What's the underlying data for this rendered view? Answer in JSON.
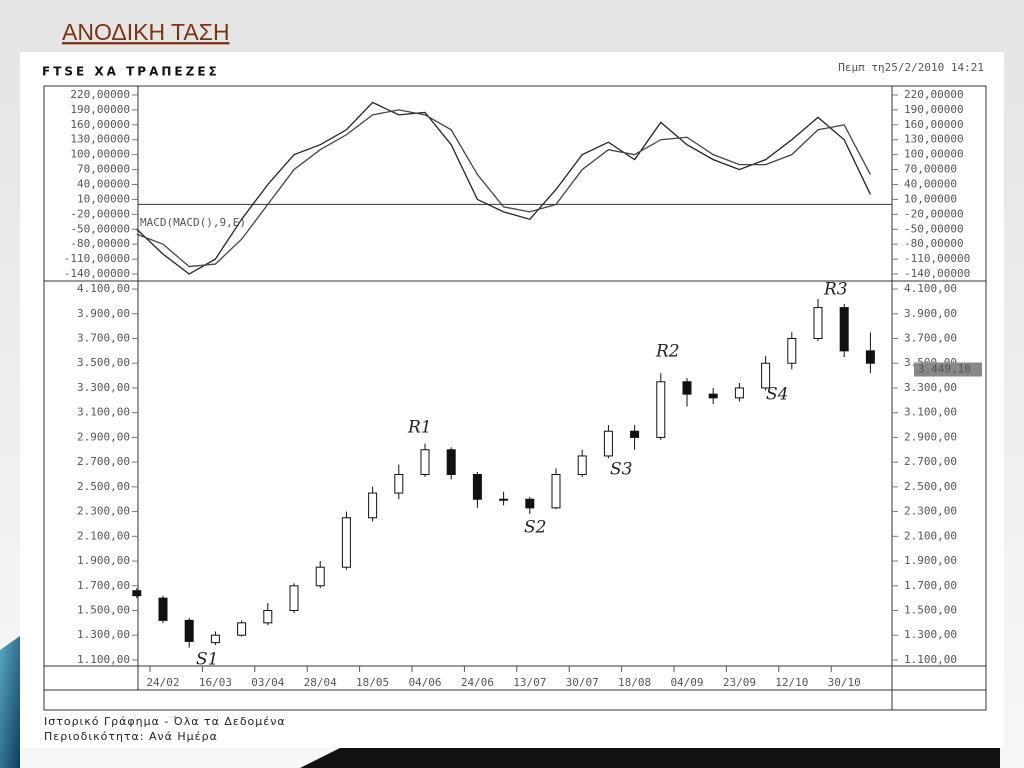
{
  "title": "ΑΝΟΔΙΚΗ ΤΑΣΗ",
  "header": {
    "name": "FTSE ΧΑ ΤΡΑΠΕΖΕΣ",
    "timestamp": "Πεμπ τη25/2/2010  14:21"
  },
  "footer": [
    "Ιστορικό Γράφημα - Όλα τα Δεδομένα",
    "Περιοδικότητα: Ανά Ημέρα"
  ],
  "chart_data": [
    {
      "type": "line",
      "title": "MACD(MACD(),9,E)",
      "categories": [
        null,
        "24/02",
        null,
        "16/03",
        null,
        "03/04",
        null,
        "28/04",
        null,
        "18/05",
        null,
        "04/06",
        null,
        "24/06",
        null,
        "13/07",
        null,
        "30/07",
        null,
        "18/08",
        null,
        "04/09",
        null,
        "23/09",
        null,
        "12/10",
        null,
        "30/10",
        null
      ],
      "series": [
        {
          "name": "MACD",
          "color": "#222",
          "values": [
            -50,
            -100,
            -140,
            -110,
            -30,
            40,
            100,
            120,
            150,
            205,
            180,
            185,
            120,
            10,
            -15,
            -30,
            30,
            100,
            125,
            90,
            165,
            120,
            90,
            70,
            90,
            130,
            175,
            130,
            20
          ]
        },
        {
          "name": "Signal",
          "color": "#444",
          "values": [
            -60,
            -80,
            -125,
            -120,
            -70,
            0,
            70,
            110,
            140,
            180,
            190,
            180,
            150,
            60,
            -5,
            -15,
            0,
            70,
            110,
            100,
            130,
            135,
            100,
            80,
            80,
            100,
            150,
            160,
            60
          ]
        }
      ],
      "ylim": [
        -152,
        234
      ],
      "yticks": [
        {
          "value": 220,
          "label": "220,00000"
        },
        {
          "value": 190,
          "label": "190,00000"
        },
        {
          "value": 160,
          "label": "160,00000"
        },
        {
          "value": 130,
          "label": "130,00000"
        },
        {
          "value": 100,
          "label": "100,00000"
        },
        {
          "value": 70,
          "label": "70,00000"
        },
        {
          "value": 40,
          "label": "40,00000"
        },
        {
          "value": 10,
          "label": "10,00000"
        },
        {
          "value": -20,
          "label": "-20,00000"
        },
        {
          "value": -50,
          "label": "-50,00000"
        },
        {
          "value": -80,
          "label": "-80,00000"
        },
        {
          "value": -110,
          "label": "-110,00000"
        },
        {
          "value": -140,
          "label": "-140,00000"
        }
      ]
    },
    {
      "type": "candlestick",
      "categories": [
        null,
        "24/02",
        null,
        "16/03",
        null,
        "03/04",
        null,
        "28/04",
        null,
        "18/05",
        null,
        "04/06",
        null,
        "24/06",
        null,
        "13/07",
        null,
        "30/07",
        null,
        "18/08",
        null,
        "04/09",
        null,
        "23/09",
        null,
        "12/10",
        null,
        "30/10",
        null
      ],
      "open": [
        1660,
        1600,
        1420,
        1240,
        1300,
        1400,
        1500,
        1700,
        1850,
        2250,
        2450,
        2600,
        2800,
        2600,
        2400,
        2400,
        2330,
        2600,
        2750,
        2950,
        2900,
        3350,
        3250,
        3220,
        3300,
        3500,
        3700,
        3950,
        3600
      ],
      "high": [
        1680,
        1620,
        1440,
        1330,
        1420,
        1560,
        1720,
        1900,
        2300,
        2500,
        2680,
        2850,
        2820,
        2620,
        2460,
        2420,
        2650,
        2800,
        3000,
        3000,
        3420,
        3380,
        3300,
        3340,
        3560,
        3750,
        4020,
        3980,
        3750
      ],
      "low": [
        1600,
        1400,
        1200,
        1220,
        1290,
        1380,
        1480,
        1680,
        1830,
        2220,
        2400,
        2580,
        2560,
        2330,
        2350,
        2280,
        2320,
        2580,
        2730,
        2800,
        2880,
        3150,
        3170,
        3190,
        3280,
        3450,
        3680,
        3550,
        3420
      ],
      "close": [
        1620,
        1420,
        1250,
        1300,
        1400,
        1500,
        1700,
        1850,
        2250,
        2450,
        2600,
        2800,
        2600,
        2400,
        2400,
        2330,
        2600,
        2750,
        2950,
        2900,
        3350,
        3250,
        3220,
        3300,
        3500,
        3700,
        3950,
        3600,
        3500
      ],
      "last_value": {
        "value": 3449.1,
        "label": "3.449,10"
      },
      "annotations": [
        "S1",
        "R1",
        "S2",
        "S3",
        "R2",
        "S4",
        "R3"
      ],
      "ylim": [
        1051,
        4157
      ],
      "yticks": [
        {
          "value": 4100,
          "label": "4.100,00"
        },
        {
          "value": 3900,
          "label": "3.900,00"
        },
        {
          "value": 3700,
          "label": "3.700,00"
        },
        {
          "value": 3500,
          "label": "3.500,00"
        },
        {
          "value": 3300,
          "label": "3.300,00"
        },
        {
          "value": 3100,
          "label": "3.100,00"
        },
        {
          "value": 2900,
          "label": "2.900,00"
        },
        {
          "value": 2700,
          "label": "2.700,00"
        },
        {
          "value": 2500,
          "label": "2.500,00"
        },
        {
          "value": 2300,
          "label": "2.300,00"
        },
        {
          "value": 2100,
          "label": "2.100,00"
        },
        {
          "value": 1900,
          "label": "1.900,00"
        },
        {
          "value": 1700,
          "label": "1.700,00"
        },
        {
          "value": 1500,
          "label": "1.500,00"
        },
        {
          "value": 1300,
          "label": "1.300,00"
        },
        {
          "value": 1100,
          "label": "1.100,00"
        }
      ]
    }
  ]
}
